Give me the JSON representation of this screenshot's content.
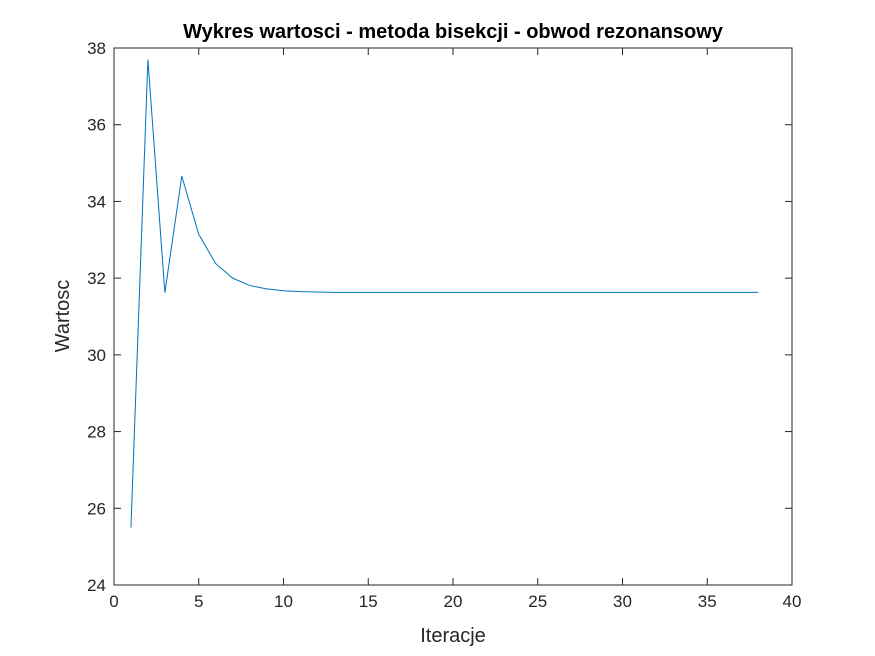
{
  "chart_data": {
    "type": "line",
    "title": "Wykres wartosci - metoda bisekcji - obwod rezonansowy",
    "xlabel": "Iteracje",
    "ylabel": "Wartosc",
    "xlim": [
      0,
      40
    ],
    "ylim": [
      24,
      38
    ],
    "xticks": [
      0,
      5,
      10,
      15,
      20,
      25,
      30,
      35,
      40
    ],
    "yticks": [
      24,
      26,
      28,
      30,
      32,
      34,
      36,
      38
    ],
    "grid": false,
    "legend": "none",
    "series": [
      {
        "color": "#0072BD",
        "x": [
          1,
          2,
          3,
          4,
          5,
          6,
          7,
          8,
          9,
          10,
          11,
          12,
          13,
          14,
          15,
          16,
          17,
          18,
          19,
          20,
          21,
          22,
          23,
          24,
          25,
          26,
          27,
          28,
          29,
          30,
          31,
          32,
          33,
          34,
          35,
          36,
          37,
          38
        ],
        "y": [
          25.5,
          37.7,
          31.62,
          34.66,
          33.14,
          32.38,
          32.0,
          31.81,
          31.72,
          31.67,
          31.65,
          31.64,
          31.63,
          31.63,
          31.63,
          31.63,
          31.63,
          31.63,
          31.63,
          31.63,
          31.63,
          31.63,
          31.63,
          31.63,
          31.63,
          31.63,
          31.63,
          31.63,
          31.63,
          31.63,
          31.63,
          31.63,
          31.63,
          31.63,
          31.63,
          31.63,
          31.63,
          31.63
        ]
      }
    ]
  }
}
